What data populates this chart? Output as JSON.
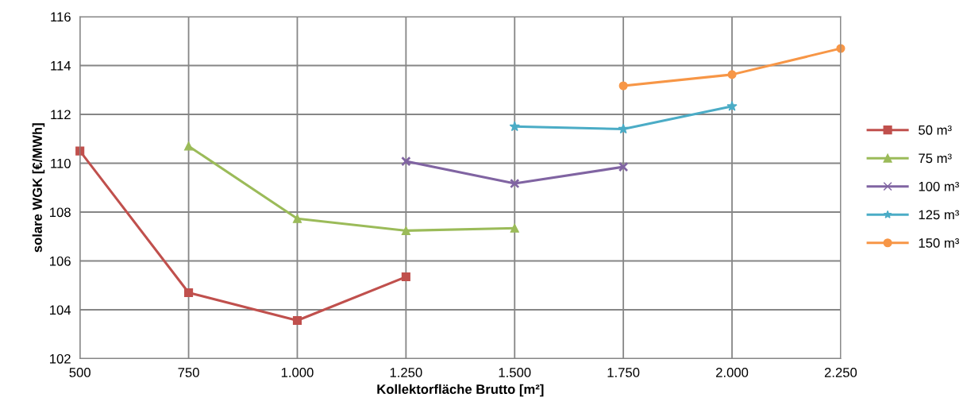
{
  "chart_data": {
    "type": "line",
    "xlabel": "Kollektorfläche Brutto [m²]",
    "ylabel": "solare WGK [€/MWh]",
    "xlim": [
      500,
      2250
    ],
    "xticks": [
      {
        "value": 500,
        "label": "500"
      },
      {
        "value": 750,
        "label": "750"
      },
      {
        "value": 1000,
        "label": "1.000"
      },
      {
        "value": 1250,
        "label": "1.250"
      },
      {
        "value": 1500,
        "label": "1.500"
      },
      {
        "value": 1750,
        "label": "1.750"
      },
      {
        "value": 2000,
        "label": "2.000"
      },
      {
        "value": 2250,
        "label": "2.250"
      }
    ],
    "ylim": [
      102,
      116
    ],
    "yticks": [
      102,
      104,
      106,
      108,
      110,
      112,
      114,
      116
    ],
    "grid": true,
    "legend": "right",
    "series": [
      {
        "name": "50 m³",
        "color": "#c0504d",
        "marker": "square",
        "x": [
          500,
          750,
          1000,
          1250
        ],
        "values": [
          110.5,
          104.7,
          103.56,
          105.35
        ]
      },
      {
        "name": "75 m³",
        "color": "#9bbb59",
        "marker": "triangle",
        "x": [
          750,
          1000,
          1250,
          1500
        ],
        "values": [
          110.7,
          107.73,
          107.24,
          107.34
        ]
      },
      {
        "name": "100 m³",
        "color": "#8064a2",
        "marker": "cross",
        "x": [
          1250,
          1500,
          1750
        ],
        "values": [
          110.08,
          109.17,
          109.85
        ]
      },
      {
        "name": "125 m³",
        "color": "#4bacc6",
        "marker": "star",
        "x": [
          1500,
          1750,
          2000
        ],
        "values": [
          111.5,
          111.4,
          112.33
        ]
      },
      {
        "name": "150 m³",
        "color": "#f79646",
        "marker": "circle",
        "x": [
          1750,
          2000,
          2250
        ],
        "values": [
          113.17,
          113.63,
          114.7
        ]
      }
    ]
  }
}
